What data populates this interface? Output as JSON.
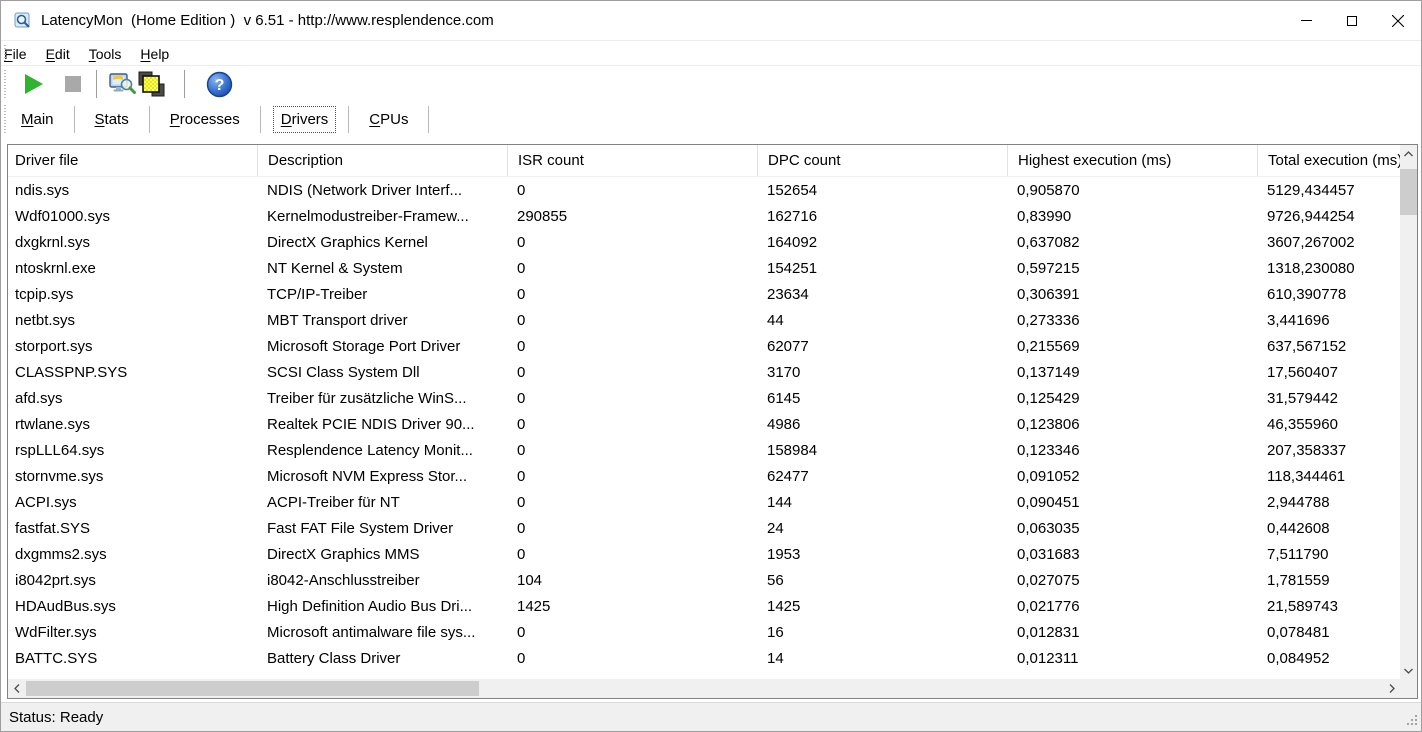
{
  "window": {
    "title": "LatencyMon  (Home Edition )  v 6.51 - http://www.resplendence.com"
  },
  "menu": {
    "items": [
      "File",
      "Edit",
      "Tools",
      "Help"
    ]
  },
  "toolbar": {
    "buttons": [
      "start-monitor",
      "stop-monitor",
      "system-scan",
      "copy-report",
      "help"
    ]
  },
  "icons": {
    "app": "magnifier-window-icon",
    "start": "green-play-triangle",
    "stop": "gray-stop-square",
    "scan": "monitor-with-magnifier",
    "report": "stacked-yellow-windows",
    "help": "blue-question-circle",
    "minimize": "minimize-dash",
    "maximize": "maximize-square",
    "close": "close-x"
  },
  "tabs": {
    "items": [
      "Main",
      "Stats",
      "Processes",
      "Drivers",
      "CPUs"
    ],
    "active": "Drivers"
  },
  "table": {
    "columns": [
      "Driver file",
      "Description",
      "ISR count",
      "DPC count",
      "Highest execution (ms)",
      "Total execution (ms)"
    ],
    "rows": [
      {
        "file": "ndis.sys",
        "desc": "NDIS (Network Driver Interf...",
        "isr": "0",
        "dpc": "152654",
        "highest": "0,905870",
        "total": "5129,434457"
      },
      {
        "file": "Wdf01000.sys",
        "desc": "Kernelmodustreiber-Framew...",
        "isr": "290855",
        "dpc": "162716",
        "highest": "0,83990",
        "total": "9726,944254"
      },
      {
        "file": "dxgkrnl.sys",
        "desc": "DirectX Graphics Kernel",
        "isr": "0",
        "dpc": "164092",
        "highest": "0,637082",
        "total": "3607,267002"
      },
      {
        "file": "ntoskrnl.exe",
        "desc": "NT Kernel & System",
        "isr": "0",
        "dpc": "154251",
        "highest": "0,597215",
        "total": "1318,230080"
      },
      {
        "file": "tcpip.sys",
        "desc": "TCP/IP-Treiber",
        "isr": "0",
        "dpc": "23634",
        "highest": "0,306391",
        "total": "610,390778"
      },
      {
        "file": "netbt.sys",
        "desc": "MBT Transport driver",
        "isr": "0",
        "dpc": "44",
        "highest": "0,273336",
        "total": "3,441696"
      },
      {
        "file": "storport.sys",
        "desc": "Microsoft Storage Port Driver",
        "isr": "0",
        "dpc": "62077",
        "highest": "0,215569",
        "total": "637,567152"
      },
      {
        "file": "CLASSPNP.SYS",
        "desc": "SCSI Class System Dll",
        "isr": "0",
        "dpc": "3170",
        "highest": "0,137149",
        "total": "17,560407"
      },
      {
        "file": "afd.sys",
        "desc": "Treiber für zusätzliche WinS...",
        "isr": "0",
        "dpc": "6145",
        "highest": "0,125429",
        "total": "31,579442"
      },
      {
        "file": "rtwlane.sys",
        "desc": "Realtek PCIE NDIS Driver 90...",
        "isr": "0",
        "dpc": "4986",
        "highest": "0,123806",
        "total": "46,355960"
      },
      {
        "file": "rspLLL64.sys",
        "desc": "Resplendence Latency Monit...",
        "isr": "0",
        "dpc": "158984",
        "highest": "0,123346",
        "total": "207,358337"
      },
      {
        "file": "stornvme.sys",
        "desc": "Microsoft NVM Express Stor...",
        "isr": "0",
        "dpc": "62477",
        "highest": "0,091052",
        "total": "118,344461"
      },
      {
        "file": "ACPI.sys",
        "desc": "ACPI-Treiber für NT",
        "isr": "0",
        "dpc": "144",
        "highest": "0,090451",
        "total": "2,944788"
      },
      {
        "file": "fastfat.SYS",
        "desc": "Fast FAT File System Driver",
        "isr": "0",
        "dpc": "24",
        "highest": "0,063035",
        "total": "0,442608"
      },
      {
        "file": "dxgmms2.sys",
        "desc": "DirectX Graphics MMS",
        "isr": "0",
        "dpc": "1953",
        "highest": "0,031683",
        "total": "7,511790"
      },
      {
        "file": "i8042prt.sys",
        "desc": "i8042-Anschlusstreiber",
        "isr": "104",
        "dpc": "56",
        "highest": "0,027075",
        "total": "1,781559"
      },
      {
        "file": "HDAudBus.sys",
        "desc": "High Definition Audio Bus Dri...",
        "isr": "1425",
        "dpc": "1425",
        "highest": "0,021776",
        "total": "21,589743"
      },
      {
        "file": "WdFilter.sys",
        "desc": "Microsoft antimalware file sys...",
        "isr": "0",
        "dpc": "16",
        "highest": "0,012831",
        "total": "0,078481"
      },
      {
        "file": "BATTC.SYS",
        "desc": "Battery Class Driver",
        "isr": "0",
        "dpc": "14",
        "highest": "0,012311",
        "total": "0,084952"
      }
    ]
  },
  "statusbar": {
    "text": "Status: Ready"
  },
  "colors": {
    "play_green": "#2eb42e",
    "stop_gray": "#a9a9a9",
    "help_blue": "#2f6fce",
    "report_yellow": "#f5f533",
    "scrollbar_thumb": "#cdcdcd",
    "scrollbar_track": "#f0f0f0",
    "statusbar_bg": "#f0f0f0",
    "table_border": "#828282"
  }
}
